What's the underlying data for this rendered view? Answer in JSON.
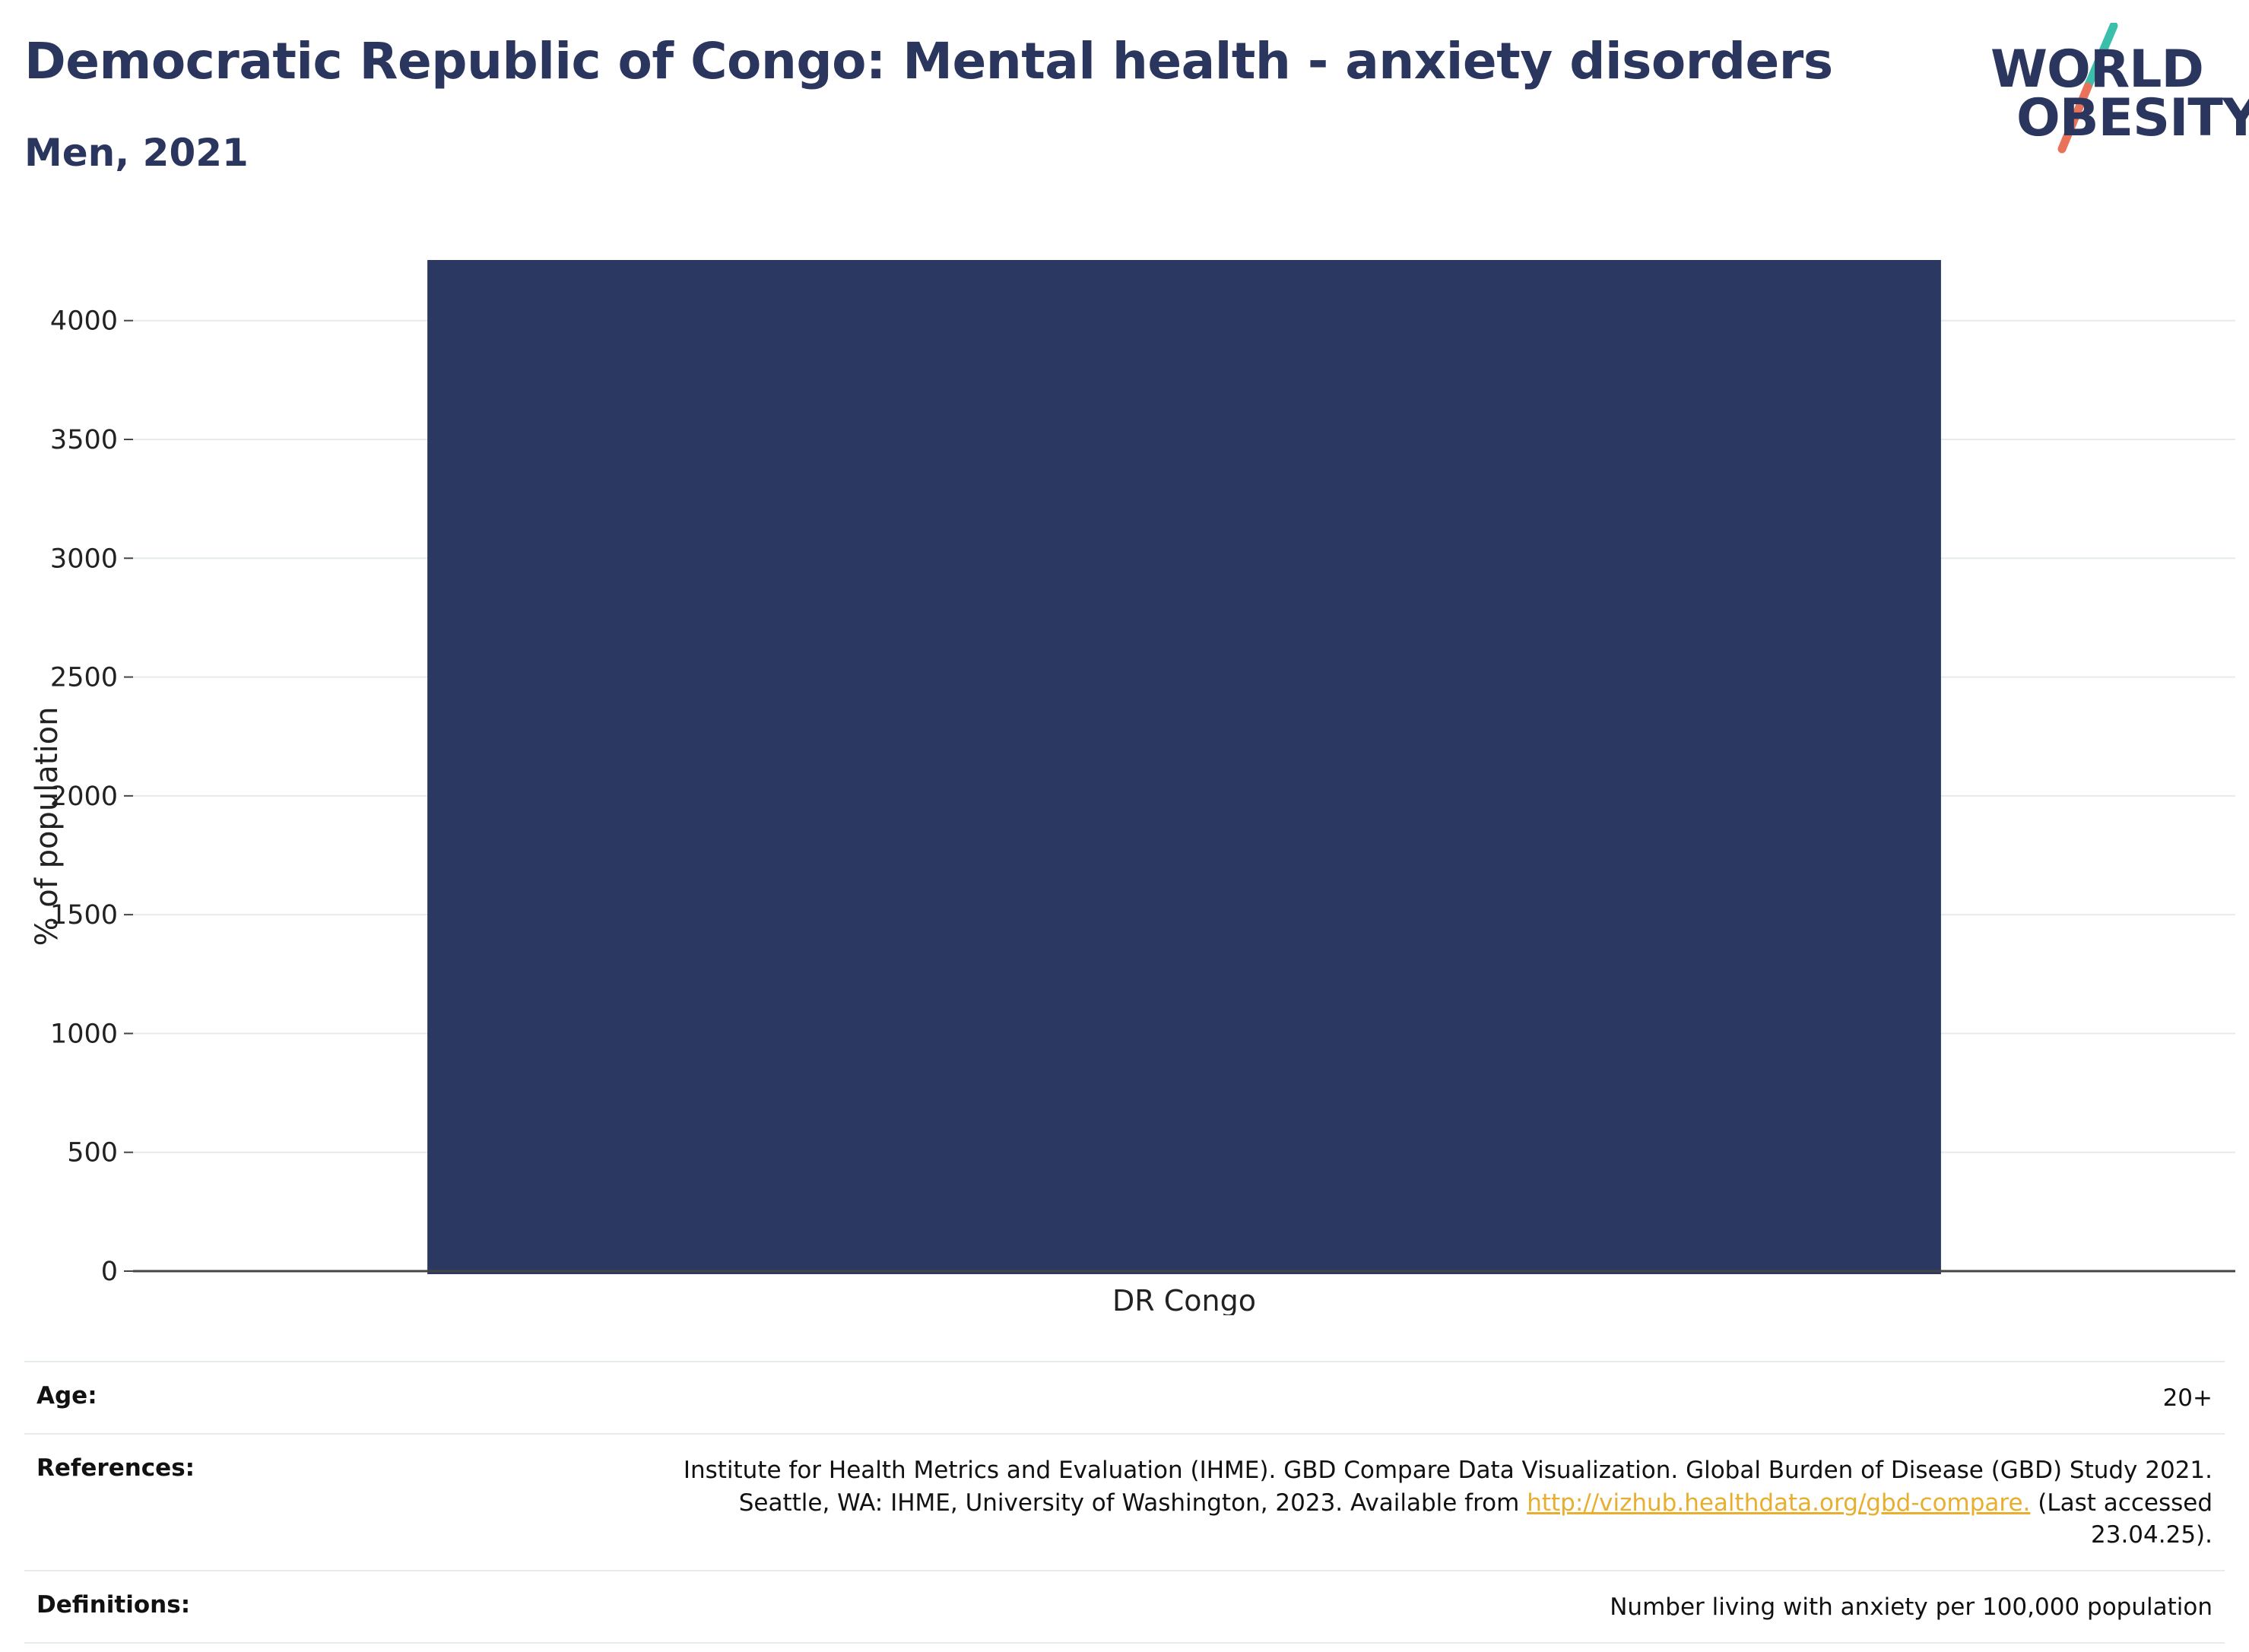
{
  "header": {
    "title": "Democratic Republic of Congo: Mental health - anxiety disorders",
    "subtitle": "Men, 2021"
  },
  "logo": {
    "line1": "WORLD",
    "line2": "OBESITY",
    "slash_top_color": "#3bbfad",
    "slash_bottom_color": "#e8735a"
  },
  "colors": {
    "bar": "#2b3862",
    "grid": "#e6ebee",
    "axis": "#444444",
    "text": "#2b365f",
    "link": "#e8ae2d"
  },
  "chart_data": {
    "type": "bar",
    "categories": [
      "DR Congo"
    ],
    "values": [
      4255
    ],
    "title": "Democratic Republic of Congo: Mental health - anxiety disorders",
    "subtitle": "Men, 2021",
    "xlabel": "",
    "ylabel": "% of population",
    "ylim": [
      0,
      4255
    ],
    "yticks": [
      0,
      500,
      1000,
      1500,
      2000,
      2500,
      3000,
      3500,
      4000
    ],
    "grid": true,
    "legend": "none"
  },
  "info": {
    "age_label": "Age:",
    "age_value": "20+",
    "references_label": "References:",
    "references_line1": "Institute for Health Metrics and Evaluation (IHME). GBD Compare Data Visualization. Global Burden of Disease (GBD) Study 2021.",
    "references_line2_pre": "Seattle, WA: IHME, University of Washington, 2023. Available from ",
    "references_link": "http://vizhub.healthdata.org/gbd-compare.",
    "references_line2_post": " (Last accessed",
    "references_line3": "23.04.25).",
    "definitions_label": "Definitions:",
    "definitions_value": "Number living with anxiety per 100,000 population"
  }
}
